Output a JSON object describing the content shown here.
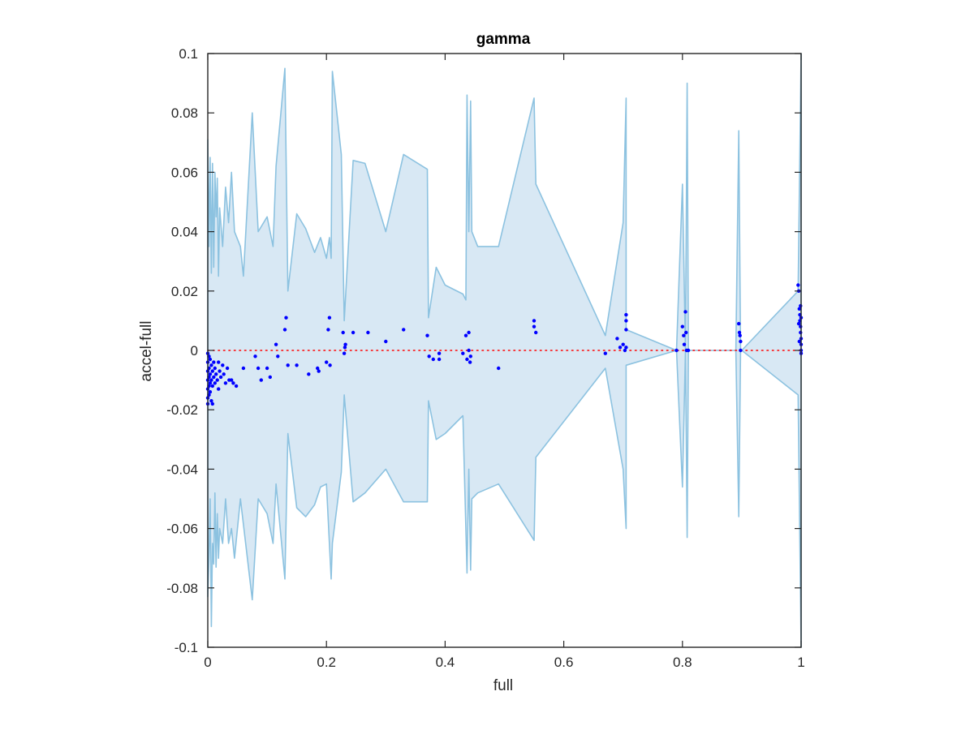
{
  "chart_data": {
    "type": "scatter",
    "title": "gamma",
    "xlabel": "full",
    "ylabel": "accel-full",
    "xlim": [
      0,
      1
    ],
    "ylim": [
      -0.1,
      0.1
    ],
    "xticks": [
      "0",
      "0.2",
      "0.4",
      "0.6",
      "0.8",
      "1"
    ],
    "yticks": [
      "-0.1",
      "-0.08",
      "-0.06",
      "-0.04",
      "-0.02",
      "0",
      "0.02",
      "0.04",
      "0.06",
      "0.08",
      "0.1"
    ],
    "grid": false,
    "reference_line": {
      "y": 0,
      "style": "dotted",
      "color": "#ff0000"
    },
    "band": {
      "fill": "#d8e8f4",
      "stroke": "#8cc2e0",
      "upper": [
        [
          0,
          0.071
        ],
        [
          0.002,
          0.035
        ],
        [
          0.004,
          0.065
        ],
        [
          0.006,
          0.026
        ],
        [
          0.008,
          0.063
        ],
        [
          0.01,
          0.028
        ],
        [
          0.012,
          0.06
        ],
        [
          0.014,
          0.045
        ],
        [
          0.016,
          0.058
        ],
        [
          0.018,
          0.025
        ],
        [
          0.02,
          0.048
        ],
        [
          0.025,
          0.035
        ],
        [
          0.03,
          0.055
        ],
        [
          0.035,
          0.043
        ],
        [
          0.04,
          0.06
        ],
        [
          0.045,
          0.04
        ],
        [
          0.055,
          0.035
        ],
        [
          0.06,
          0.025
        ],
        [
          0.075,
          0.08
        ],
        [
          0.085,
          0.04
        ],
        [
          0.1,
          0.045
        ],
        [
          0.11,
          0.035
        ],
        [
          0.115,
          0.062
        ],
        [
          0.13,
          0.095
        ],
        [
          0.135,
          0.02
        ],
        [
          0.15,
          0.046
        ],
        [
          0.165,
          0.041
        ],
        [
          0.18,
          0.033
        ],
        [
          0.19,
          0.038
        ],
        [
          0.2,
          0.031
        ],
        [
          0.205,
          0.038
        ],
        [
          0.208,
          0.031
        ],
        [
          0.21,
          0.094
        ],
        [
          0.225,
          0.066
        ],
        [
          0.23,
          0.01
        ],
        [
          0.245,
          0.064
        ],
        [
          0.265,
          0.063
        ],
        [
          0.3,
          0.04
        ],
        [
          0.33,
          0.066
        ],
        [
          0.37,
          0.061
        ],
        [
          0.372,
          0.011
        ],
        [
          0.385,
          0.028
        ],
        [
          0.4,
          0.022
        ],
        [
          0.43,
          0.019
        ],
        [
          0.435,
          0.017
        ],
        [
          0.437,
          0.086
        ],
        [
          0.44,
          0.04
        ],
        [
          0.443,
          0.084
        ],
        [
          0.445,
          0.04
        ],
        [
          0.455,
          0.035
        ],
        [
          0.49,
          0.035
        ],
        [
          0.55,
          0.085
        ],
        [
          0.553,
          0.056
        ],
        [
          0.67,
          0.005
        ],
        [
          0.7,
          0.043
        ],
        [
          0.705,
          0.085
        ],
        [
          0.705,
          0.007
        ],
        [
          0.79,
          0.0
        ],
        [
          0.8,
          0.056
        ],
        [
          0.805,
          0.0
        ],
        [
          0.808,
          0.09
        ],
        [
          0.81,
          0.0
        ],
        [
          0.89,
          0.0
        ],
        [
          0.895,
          0.074
        ],
        [
          0.898,
          0.0
        ],
        [
          0.9,
          0.0
        ],
        [
          0.995,
          0.02
        ],
        [
          1,
          0.1
        ]
      ],
      "lower": [
        [
          0,
          -0.083
        ],
        [
          0.002,
          -0.07
        ],
        [
          0.004,
          -0.05
        ],
        [
          0.006,
          -0.093
        ],
        [
          0.008,
          -0.065
        ],
        [
          0.01,
          -0.072
        ],
        [
          0.012,
          -0.048
        ],
        [
          0.014,
          -0.073
        ],
        [
          0.016,
          -0.055
        ],
        [
          0.018,
          -0.07
        ],
        [
          0.02,
          -0.06
        ],
        [
          0.025,
          -0.065
        ],
        [
          0.03,
          -0.05
        ],
        [
          0.035,
          -0.065
        ],
        [
          0.04,
          -0.06
        ],
        [
          0.045,
          -0.07
        ],
        [
          0.055,
          -0.05
        ],
        [
          0.075,
          -0.084
        ],
        [
          0.085,
          -0.05
        ],
        [
          0.1,
          -0.055
        ],
        [
          0.11,
          -0.065
        ],
        [
          0.115,
          -0.045
        ],
        [
          0.13,
          -0.077
        ],
        [
          0.135,
          -0.028
        ],
        [
          0.15,
          -0.053
        ],
        [
          0.165,
          -0.056
        ],
        [
          0.18,
          -0.052
        ],
        [
          0.19,
          -0.046
        ],
        [
          0.2,
          -0.045
        ],
        [
          0.208,
          -0.077
        ],
        [
          0.21,
          -0.065
        ],
        [
          0.225,
          -0.041
        ],
        [
          0.23,
          -0.015
        ],
        [
          0.245,
          -0.051
        ],
        [
          0.265,
          -0.048
        ],
        [
          0.3,
          -0.04
        ],
        [
          0.33,
          -0.051
        ],
        [
          0.37,
          -0.051
        ],
        [
          0.372,
          -0.017
        ],
        [
          0.385,
          -0.03
        ],
        [
          0.4,
          -0.028
        ],
        [
          0.43,
          -0.022
        ],
        [
          0.437,
          -0.075
        ],
        [
          0.44,
          -0.04
        ],
        [
          0.443,
          -0.074
        ],
        [
          0.445,
          -0.05
        ],
        [
          0.455,
          -0.048
        ],
        [
          0.49,
          -0.045
        ],
        [
          0.55,
          -0.064
        ],
        [
          0.553,
          -0.036
        ],
        [
          0.67,
          -0.006
        ],
        [
          0.7,
          -0.04
        ],
        [
          0.705,
          -0.06
        ],
        [
          0.705,
          -0.005
        ],
        [
          0.79,
          0.0
        ],
        [
          0.8,
          -0.046
        ],
        [
          0.805,
          0.0
        ],
        [
          0.808,
          -0.063
        ],
        [
          0.81,
          0.0
        ],
        [
          0.89,
          0.0
        ],
        [
          0.895,
          -0.056
        ],
        [
          0.898,
          0.0
        ],
        [
          0.9,
          0.0
        ],
        [
          0.995,
          -0.015
        ],
        [
          1,
          -0.1
        ]
      ]
    },
    "series": [
      {
        "color": "#0000ff",
        "points": [
          [
            0.0,
            -0.001
          ],
          [
            0.0,
            -0.004
          ],
          [
            0.0,
            -0.007
          ],
          [
            0.0,
            -0.01
          ],
          [
            0.0,
            -0.013
          ],
          [
            0.0,
            -0.016
          ],
          [
            0.0,
            -0.018
          ],
          [
            0.002,
            -0.002
          ],
          [
            0.002,
            -0.006
          ],
          [
            0.002,
            -0.009
          ],
          [
            0.002,
            -0.012
          ],
          [
            0.002,
            -0.015
          ],
          [
            0.004,
            -0.003
          ],
          [
            0.004,
            -0.008
          ],
          [
            0.004,
            -0.011
          ],
          [
            0.004,
            -0.014
          ],
          [
            0.006,
            -0.005
          ],
          [
            0.006,
            -0.01
          ],
          [
            0.006,
            -0.017
          ],
          [
            0.008,
            -0.007
          ],
          [
            0.008,
            -0.012
          ],
          [
            0.008,
            -0.018
          ],
          [
            0.01,
            -0.004
          ],
          [
            0.01,
            -0.009
          ],
          [
            0.012,
            -0.006
          ],
          [
            0.012,
            -0.011
          ],
          [
            0.014,
            -0.008
          ],
          [
            0.016,
            -0.01
          ],
          [
            0.018,
            -0.004
          ],
          [
            0.018,
            -0.013
          ],
          [
            0.02,
            -0.007
          ],
          [
            0.022,
            -0.009
          ],
          [
            0.025,
            -0.005
          ],
          [
            0.027,
            -0.008
          ],
          [
            0.03,
            -0.011
          ],
          [
            0.033,
            -0.006
          ],
          [
            0.036,
            -0.01
          ],
          [
            0.04,
            -0.01
          ],
          [
            0.043,
            -0.011
          ],
          [
            0.048,
            -0.012
          ],
          [
            0.06,
            -0.006
          ],
          [
            0.08,
            -0.002
          ],
          [
            0.085,
            -0.006
          ],
          [
            0.09,
            -0.01
          ],
          [
            0.1,
            -0.006
          ],
          [
            0.105,
            -0.009
          ],
          [
            0.115,
            0.002
          ],
          [
            0.118,
            -0.002
          ],
          [
            0.13,
            0.007
          ],
          [
            0.132,
            0.011
          ],
          [
            0.135,
            -0.005
          ],
          [
            0.15,
            -0.005
          ],
          [
            0.17,
            -0.008
          ],
          [
            0.185,
            -0.006
          ],
          [
            0.187,
            -0.007
          ],
          [
            0.2,
            -0.004
          ],
          [
            0.203,
            0.007
          ],
          [
            0.205,
            0.011
          ],
          [
            0.206,
            -0.005
          ],
          [
            0.228,
            0.006
          ],
          [
            0.23,
            -0.001
          ],
          [
            0.231,
            0.001
          ],
          [
            0.232,
            0.002
          ],
          [
            0.245,
            0.006
          ],
          [
            0.27,
            0.006
          ],
          [
            0.3,
            0.003
          ],
          [
            0.33,
            0.007
          ],
          [
            0.37,
            0.005
          ],
          [
            0.373,
            -0.002
          ],
          [
            0.38,
            -0.003
          ],
          [
            0.39,
            -0.001
          ],
          [
            0.39,
            -0.003
          ],
          [
            0.43,
            -0.001
          ],
          [
            0.435,
            0.005
          ],
          [
            0.437,
            -0.003
          ],
          [
            0.44,
            0.006
          ],
          [
            0.44,
            0.0
          ],
          [
            0.442,
            -0.004
          ],
          [
            0.443,
            -0.002
          ],
          [
            0.49,
            -0.006
          ],
          [
            0.55,
            0.01
          ],
          [
            0.55,
            0.008
          ],
          [
            0.553,
            0.006
          ],
          [
            0.67,
            -0.001
          ],
          [
            0.69,
            0.004
          ],
          [
            0.695,
            0.001
          ],
          [
            0.7,
            0.002
          ],
          [
            0.703,
            0.0
          ],
          [
            0.705,
            0.012
          ],
          [
            0.705,
            0.01
          ],
          [
            0.705,
            0.007
          ],
          [
            0.705,
            0.001
          ],
          [
            0.79,
            0.0
          ],
          [
            0.8,
            0.008
          ],
          [
            0.802,
            0.005
          ],
          [
            0.803,
            0.002
          ],
          [
            0.805,
            0.013
          ],
          [
            0.806,
            0.006
          ],
          [
            0.807,
            0.0
          ],
          [
            0.81,
            0.0
          ],
          [
            0.895,
            0.009
          ],
          [
            0.896,
            0.006
          ],
          [
            0.897,
            0.005
          ],
          [
            0.898,
            0.003
          ],
          [
            0.898,
            0.0
          ],
          [
            0.995,
            0.022
          ],
          [
            0.996,
            0.02
          ],
          [
            0.997,
            0.014
          ],
          [
            0.998,
            0.012
          ],
          [
            0.998,
            0.01
          ],
          [
            0.999,
            0.008
          ],
          [
            0.999,
            0.006
          ],
          [
            1.0,
            0.004
          ],
          [
            1.0,
            0.002
          ],
          [
            1.0,
            0.0
          ],
          [
            1.0,
            -0.001
          ],
          [
            0.997,
            0.003
          ],
          [
            0.996,
            0.009
          ],
          [
            0.999,
            0.015
          ],
          [
            1.0,
            0.011
          ]
        ]
      }
    ]
  }
}
